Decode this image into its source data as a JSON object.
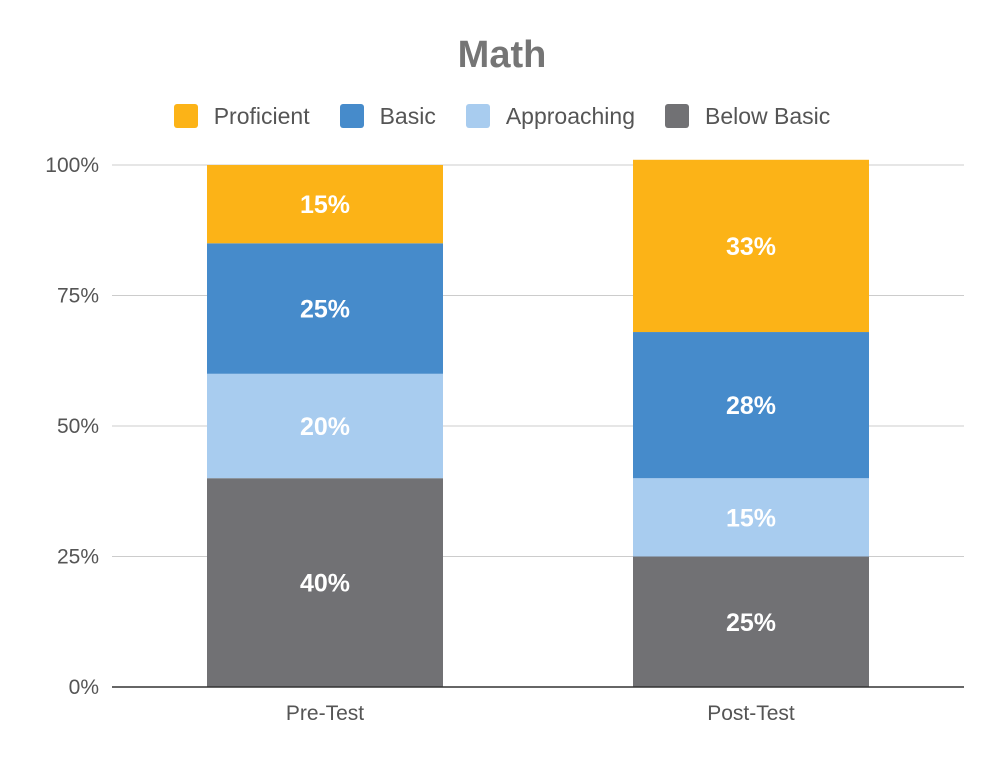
{
  "chart_data": {
    "type": "bar",
    "stacked": true,
    "title": "Math",
    "categories": [
      "Pre-Test",
      "Post-Test"
    ],
    "series": [
      {
        "name": "Below Basic",
        "values": [
          40,
          25
        ],
        "labels": [
          "40%",
          "25%"
        ],
        "color": "#717174"
      },
      {
        "name": "Approaching",
        "values": [
          20,
          15
        ],
        "labels": [
          "20%",
          "15%"
        ],
        "color": "#a8ccef"
      },
      {
        "name": "Basic",
        "values": [
          25,
          28
        ],
        "labels": [
          "25%",
          "28%"
        ],
        "color": "#468bcb"
      },
      {
        "name": "Proficient",
        "values": [
          15,
          33
        ],
        "labels": [
          "15%",
          "33%"
        ],
        "color": "#fcb317"
      }
    ],
    "legend_order": [
      "Proficient",
      "Basic",
      "Approaching",
      "Below Basic"
    ],
    "legend_position": "top",
    "ylim": [
      0,
      100
    ],
    "yticks": [
      "0%",
      "25%",
      "50%",
      "75%",
      "100%"
    ],
    "ytick_values": [
      0,
      25,
      50,
      75,
      100
    ],
    "grid": true,
    "xlabel": "",
    "ylabel": ""
  }
}
